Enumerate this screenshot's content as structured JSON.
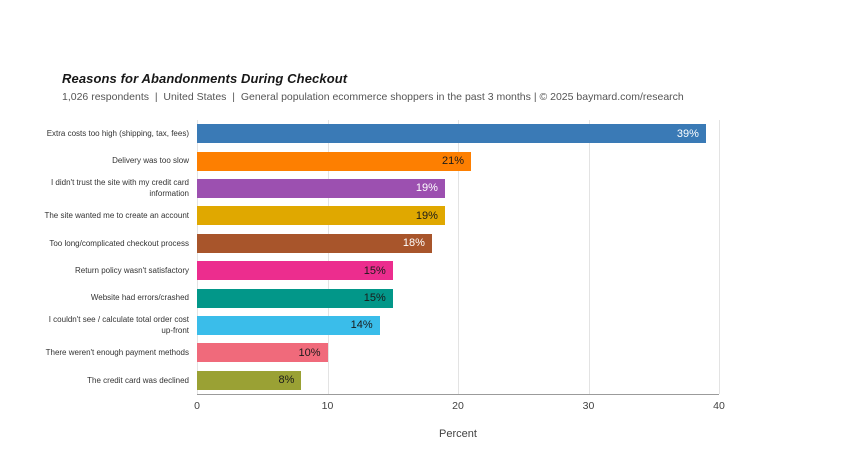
{
  "header": {
    "title": "Reasons for Abandonments During Checkout",
    "subtitle": "1,026 respondents  |  United States  |  General population ecommerce shoppers in the past 3 months | © 2025 baymard.com/research"
  },
  "chart_data": {
    "type": "bar",
    "orientation": "horizontal",
    "title": "Reasons for Abandonments During Checkout",
    "subtitle": "1,026 respondents | United States | General population ecommerce shoppers in the past 3 months | © 2025 baymard.com/research",
    "xlabel": "Percent",
    "ylabel": "",
    "xlim": [
      0,
      40
    ],
    "xticks": [
      "0",
      "10",
      "20",
      "30",
      "40"
    ],
    "grid": true,
    "legend_position": "none",
    "categories": [
      "Extra costs too high (shipping, tax, fees)",
      "Delivery was too slow",
      "I didn't trust the site with my credit card\ninformation",
      "The site wanted me to create an account",
      "Too long/complicated checkout process",
      "Return policy wasn't satisfactory",
      "Website had errors/crashed",
      "I couldn't see / calculate total order cost\nup-front",
      "There weren't enough payment methods",
      "The credit card was declined"
    ],
    "values": [
      39,
      21,
      19,
      19,
      18,
      15,
      15,
      14,
      10,
      8
    ],
    "value_labels": [
      "39%",
      "21%",
      "19%",
      "19%",
      "18%",
      "15%",
      "15%",
      "14%",
      "10%",
      "8%"
    ],
    "bar_colors": [
      "#3a7ab6",
      "#fd7f01",
      "#9c50b0",
      "#e0a800",
      "#a8552b",
      "#ec2d8e",
      "#029789",
      "#3abdea",
      "#f06a7b",
      "#9aa134"
    ],
    "value_label_colors": [
      "#ffffff",
      "#1a1a1a",
      "#ffffff",
      "#1a1a1a",
      "#ffffff",
      "#1a1a1a",
      "#1a1a1a",
      "#1a1a1a",
      "#1a1a1a",
      "#1a1a1a"
    ],
    "colors": {
      "gridline": "#e3e3e3",
      "axis_line": "#9b9b9b",
      "subtitle_text": "#555555",
      "axis_text": "#424242"
    }
  }
}
